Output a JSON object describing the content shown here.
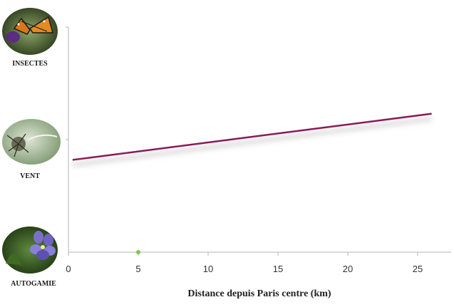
{
  "chart_data": {
    "type": "line",
    "xlabel": "Distance depuis Paris centre (km)",
    "xlim": [
      0,
      26
    ],
    "x_ticks": [
      0,
      5,
      10,
      15,
      20,
      25
    ],
    "y_categories": [
      "AUTOGAMIE",
      "VENT",
      "INSECTES"
    ],
    "ylim": [
      0,
      2
    ],
    "series": [
      {
        "x": [
          0.3,
          26
        ],
        "y": [
          0.82,
          1.23
        ],
        "color": "#8b1a5a"
      }
    ],
    "marker": {
      "x": 5,
      "y": 0,
      "color": "#7ac74f"
    },
    "icons": [
      {
        "category": "INSECTES",
        "icon": "butterfly-icon"
      },
      {
        "category": "VENT",
        "icon": "dandelion-seed-icon"
      },
      {
        "category": "AUTOGAMIE",
        "icon": "violet-flower-icon"
      }
    ]
  }
}
